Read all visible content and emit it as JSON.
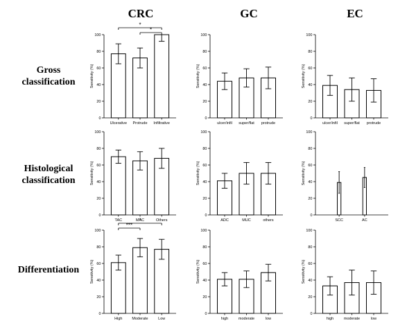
{
  "columns": [
    "CRC",
    "GC",
    "EC"
  ],
  "rows": [
    {
      "label_lines": [
        "Gross",
        "classification"
      ]
    },
    {
      "label_lines": [
        "Histological",
        "classification"
      ]
    },
    {
      "label_lines": [
        "Differentiation"
      ]
    }
  ],
  "chart_data": [
    {
      "type": "bar",
      "ylabel": "Sensitivity (%)",
      "ylim": [
        0,
        100
      ],
      "yticks": [
        0,
        20,
        40,
        60,
        80,
        100
      ],
      "categories": [
        "Ulcerative",
        "Protrude",
        "Infiltrative"
      ],
      "values": [
        77,
        72,
        100
      ],
      "error": [
        12,
        12,
        8
      ],
      "significance": [
        {
          "from": 0,
          "to": 2,
          "label": "*"
        },
        {
          "from": 1,
          "to": 2,
          "label": "*"
        }
      ]
    },
    {
      "type": "bar",
      "ylabel": "Sensitivity (%)",
      "ylim": [
        0,
        100
      ],
      "yticks": [
        0,
        20,
        40,
        60,
        80,
        100
      ],
      "categories": [
        "ulcer/infil",
        "super/flat",
        "protrude"
      ],
      "values": [
        44,
        48,
        48
      ],
      "error": [
        10,
        11,
        13
      ],
      "significance": []
    },
    {
      "type": "bar",
      "ylabel": "Sensitivity (%)",
      "ylim": [
        0,
        100
      ],
      "yticks": [
        0,
        20,
        40,
        60,
        80,
        100
      ],
      "categories": [
        "ulcer/infil",
        "super/flat",
        "protrude"
      ],
      "values": [
        39,
        34,
        33
      ],
      "error": [
        12,
        14,
        14
      ],
      "significance": []
    },
    {
      "type": "bar",
      "ylabel": "Sensitivity (%)",
      "ylim": [
        0,
        100
      ],
      "yticks": [
        0,
        20,
        40,
        60,
        80,
        100
      ],
      "categories": [
        "TAC",
        "MAC",
        "Others"
      ],
      "values": [
        70,
        65,
        68
      ],
      "error": [
        8,
        11,
        12
      ],
      "significance": []
    },
    {
      "type": "bar",
      "ylabel": "Sensitivity (%)",
      "ylim": [
        0,
        100
      ],
      "yticks": [
        0,
        20,
        40,
        60,
        80,
        100
      ],
      "categories": [
        "ADC",
        "MUC",
        "others"
      ],
      "values": [
        41,
        50,
        50
      ],
      "error": [
        9,
        13,
        13
      ],
      "significance": []
    },
    {
      "type": "bar",
      "ylabel": "Sensitivity (%)",
      "ylim": [
        0,
        100
      ],
      "yticks": [
        0,
        20,
        40,
        60,
        80,
        100
      ],
      "categories": [
        "SCC",
        "AC"
      ],
      "values": [
        39,
        45
      ],
      "error": [
        13,
        12
      ],
      "significance": []
    },
    {
      "type": "bar",
      "ylabel": "Sensitivity (%)",
      "ylim": [
        0,
        100
      ],
      "yticks": [
        0,
        20,
        40,
        60,
        80,
        100
      ],
      "categories": [
        "High",
        "Moderate",
        "Low"
      ],
      "values": [
        61,
        79,
        77
      ],
      "error": [
        9,
        11,
        12
      ],
      "significance": [
        {
          "from": 0,
          "to": 2,
          "label": "*"
        },
        {
          "from": 0,
          "to": 1,
          "label": "***"
        }
      ]
    },
    {
      "type": "bar",
      "ylabel": "Sensitivity (%)",
      "ylim": [
        0,
        100
      ],
      "yticks": [
        0,
        20,
        40,
        60,
        80,
        100
      ],
      "categories": [
        "high",
        "moderate",
        "low"
      ],
      "values": [
        41,
        41,
        49
      ],
      "error": [
        8,
        10,
        10
      ],
      "significance": []
    },
    {
      "type": "bar",
      "ylabel": "Sensitivity (%)",
      "ylim": [
        0,
        100
      ],
      "yticks": [
        0,
        20,
        40,
        60,
        80,
        100
      ],
      "categories": [
        "high",
        "moderate",
        "low"
      ],
      "values": [
        33,
        37,
        37
      ],
      "error": [
        11,
        15,
        14
      ],
      "significance": []
    }
  ]
}
